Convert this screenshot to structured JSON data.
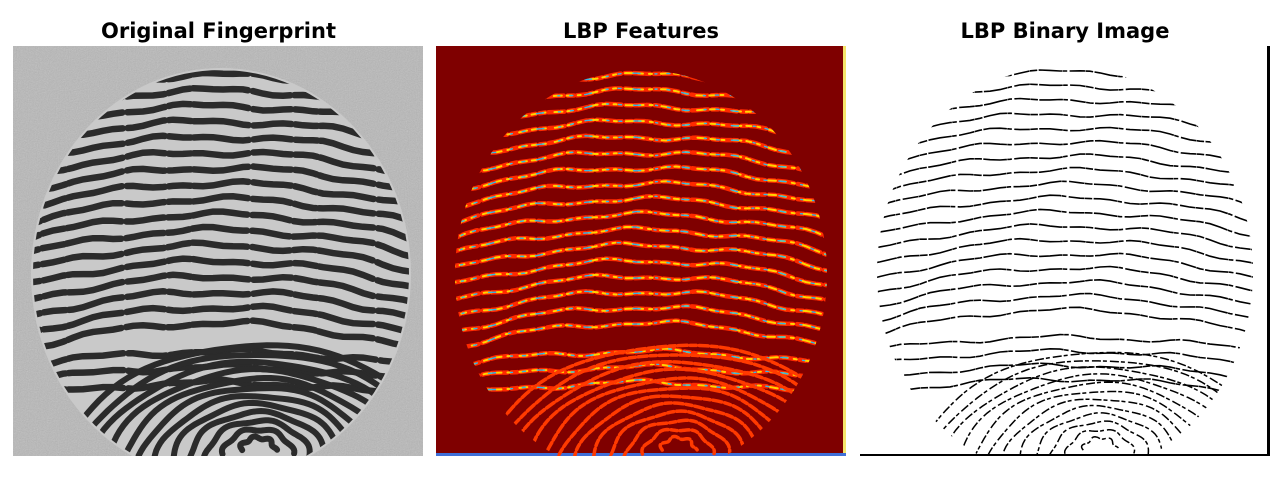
{
  "figure": {
    "panels": [
      {
        "title": "Original Fingerprint"
      },
      {
        "title": "LBP Features"
      },
      {
        "title": "LBP Binary Image"
      }
    ]
  }
}
